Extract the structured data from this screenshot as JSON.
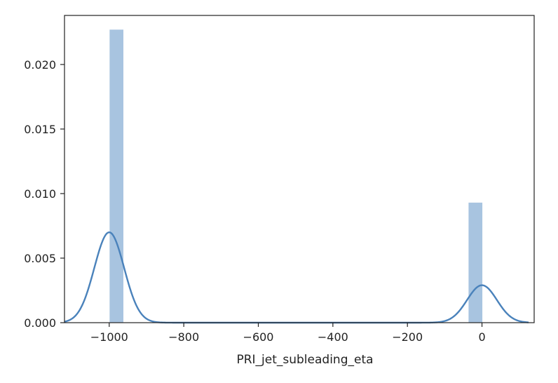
{
  "chart_data": {
    "type": "bar",
    "title": "",
    "xlabel": "PRI_jet_subleading_eta",
    "ylabel": "",
    "xlim": [
      -1120,
      140
    ],
    "ylim": [
      0,
      0.0238
    ],
    "x_ticks": [
      -1000,
      -800,
      -600,
      -400,
      -200,
      0
    ],
    "x_tick_labels": [
      "−1000",
      "−800",
      "−600",
      "−400",
      "−200",
      "0"
    ],
    "y_ticks": [
      0.0,
      0.005,
      0.01,
      0.015,
      0.02
    ],
    "y_tick_labels": [
      "0.000",
      "0.005",
      "0.010",
      "0.015",
      "0.020"
    ],
    "grid": false,
    "histogram": {
      "bins": [
        {
          "x0": -999,
          "x1": -962,
          "density": 0.0227
        },
        {
          "x0": -36,
          "x1": 1,
          "density": 0.0093
        }
      ],
      "color": "#a8c4e0"
    },
    "kde": {
      "color": "#4a82bb",
      "components": [
        {
          "center": -1000,
          "sigma": 40,
          "peak": 0.007
        },
        {
          "center": 0,
          "sigma": 40,
          "peak": 0.0029
        }
      ],
      "x_range": [
        -1120,
        125
      ]
    }
  }
}
